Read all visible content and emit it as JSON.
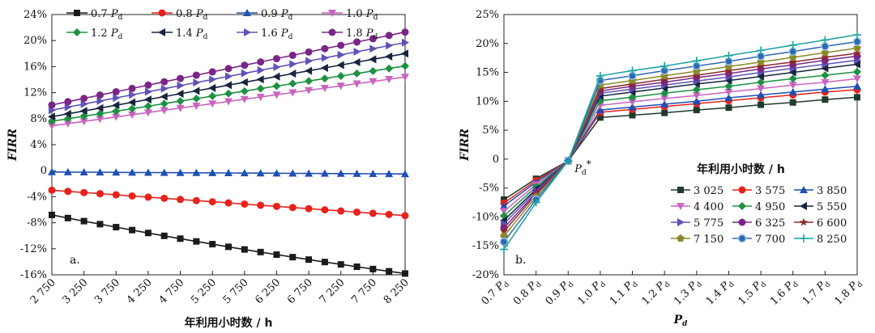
{
  "chart_data": [
    {
      "type": "line",
      "panel_label": "a.",
      "xlabel": "年利用小时数 / h",
      "ylabel": "FIRR",
      "x": [
        2750,
        3000,
        3250,
        3500,
        3750,
        4000,
        4250,
        4500,
        4750,
        5000,
        5250,
        5500,
        5750,
        6000,
        6250,
        6500,
        6750,
        7000,
        7250,
        7500,
        7750,
        8000,
        8250
      ],
      "x_tick_labels": [
        "2 750",
        "3 250",
        "3 750",
        "4 250",
        "4 750",
        "5 250",
        "5 750",
        "6 250",
        "6 750",
        "7 250",
        "7 750",
        "8 250"
      ],
      "ylim": [
        -16,
        24
      ],
      "y_tick_labels": [
        "-16%",
        "-12%",
        "-8%",
        "-4%",
        "0",
        "4%",
        "8%",
        "12%",
        "16%",
        "20%",
        "24%"
      ],
      "series": [
        {
          "name": "0.7 Pd",
          "color": "#1b1b1b",
          "marker": "square",
          "start": -6.8,
          "end": -15.8,
          "curve": 1.6
        },
        {
          "name": "0.8 Pd",
          "color": "#e8221b",
          "marker": "circle",
          "start": -3.0,
          "end": -6.9,
          "curve": 0
        },
        {
          "name": "0.9 Pd",
          "color": "#1f4fb4",
          "marker": "triangle-up",
          "start": -0.2,
          "end": -0.5,
          "curve": 0
        },
        {
          "name": "1.0 Pd",
          "color": "#c964c0",
          "marker": "triangle-down",
          "start": 6.9,
          "end": 14.4,
          "curve": 0
        },
        {
          "name": "1.2 Pd",
          "color": "#1d9140",
          "marker": "diamond",
          "start": 7.6,
          "end": 16.1,
          "curve": 0
        },
        {
          "name": "1.4 Pd",
          "color": "#17243f",
          "marker": "triangle-left",
          "start": 8.3,
          "end": 18.0,
          "curve": 0
        },
        {
          "name": "1.6 Pd",
          "color": "#5e52b8",
          "marker": "triangle-right",
          "start": 9.3,
          "end": 19.7,
          "curve": 0
        },
        {
          "name": "1.8 Pd",
          "color": "#7a2687",
          "marker": "circle",
          "start": 10.1,
          "end": 21.3,
          "curve": 0
        }
      ]
    },
    {
      "type": "line",
      "panel_label": "b.",
      "xlabel": "Pd",
      "ylabel": "FIRR",
      "categories": [
        "0.7 Pd",
        "0.8 Pd",
        "0.9 Pd",
        "1.0 Pd",
        "1.1 Pd",
        "1.2 Pd",
        "1.3 Pd",
        "1.4 Pd",
        "1.5 Pd",
        "1.6 Pd",
        "1.7 Pd",
        "1.8 Pd"
      ],
      "ylim": [
        -20,
        25
      ],
      "y_tick_labels": [
        "-20%",
        "-15%",
        "-10%",
        "-5%",
        "0",
        "5%",
        "10%",
        "15%",
        "20%",
        "25%"
      ],
      "annotation": "Pd*",
      "legend_title": "年利用小时数 / h",
      "series": [
        {
          "name": "3 025",
          "color": "#1f3a2c",
          "marker": "square",
          "values": [
            -7.0,
            -3.4,
            -0.3,
            7.2,
            7.6,
            8.0,
            8.5,
            8.9,
            9.4,
            9.8,
            10.3,
            10.7
          ]
        },
        {
          "name": "3 575",
          "color": "#e8221b",
          "marker": "circle",
          "values": [
            -7.6,
            -3.7,
            -0.3,
            8.1,
            8.6,
            9.1,
            9.6,
            10.1,
            10.6,
            11.1,
            11.6,
            12.0
          ]
        },
        {
          "name": "3 850",
          "color": "#1f4fb4",
          "marker": "triangle-up",
          "values": [
            -8.1,
            -4.0,
            -0.3,
            8.5,
            9.0,
            9.5,
            10.0,
            10.6,
            11.1,
            11.6,
            12.1,
            12.6
          ]
        },
        {
          "name": "4 400",
          "color": "#c964c0",
          "marker": "triangle-down",
          "values": [
            -9.0,
            -4.4,
            -0.3,
            9.3,
            9.9,
            10.5,
            11.0,
            11.6,
            12.2,
            12.8,
            13.3,
            13.9
          ]
        },
        {
          "name": "4 950",
          "color": "#1d9140",
          "marker": "diamond",
          "values": [
            -9.8,
            -4.8,
            -0.3,
            10.1,
            10.7,
            11.4,
            12.0,
            12.6,
            13.3,
            13.9,
            14.5,
            15.1
          ]
        },
        {
          "name": "5 550",
          "color": "#17243f",
          "marker": "triangle-left",
          "values": [
            -10.6,
            -5.2,
            -0.3,
            10.9,
            11.6,
            12.3,
            13.0,
            13.6,
            14.3,
            15.0,
            15.7,
            16.4
          ]
        },
        {
          "name": "5 775",
          "color": "#5e52b8",
          "marker": "triangle-right",
          "values": [
            -11.2,
            -5.5,
            -0.3,
            11.4,
            12.1,
            12.8,
            13.5,
            14.2,
            15.0,
            15.7,
            16.4,
            17.1
          ]
        },
        {
          "name": "6 325",
          "color": "#7a2687",
          "marker": "circle",
          "values": [
            -11.9,
            -5.8,
            -0.3,
            11.8,
            12.6,
            13.3,
            14.1,
            14.8,
            15.6,
            16.3,
            17.1,
            17.8
          ]
        },
        {
          "name": "6 600",
          "color": "#8b2a2a",
          "marker": "star",
          "values": [
            -12.5,
            -6.1,
            -0.3,
            12.2,
            13.0,
            13.8,
            14.5,
            15.3,
            16.1,
            16.8,
            17.6,
            18.3
          ]
        },
        {
          "name": "7 150",
          "color": "#8a8a2a",
          "marker": "pentagon",
          "values": [
            -13.3,
            -6.5,
            -0.3,
            12.8,
            13.6,
            14.4,
            15.2,
            16.0,
            16.8,
            17.6,
            18.4,
            19.2
          ]
        },
        {
          "name": "7 700",
          "color": "#2d68b0",
          "marker": "circle-dot",
          "values": [
            -14.3,
            -7.0,
            -0.3,
            13.6,
            14.4,
            15.3,
            16.1,
            16.9,
            17.8,
            18.6,
            19.5,
            20.3
          ]
        },
        {
          "name": "8 250",
          "color": "#1aa3a0",
          "marker": "plus",
          "values": [
            -15.6,
            -7.5,
            -0.3,
            14.4,
            15.3,
            16.1,
            17.0,
            17.9,
            18.8,
            19.7,
            20.6,
            21.5
          ]
        }
      ]
    }
  ]
}
